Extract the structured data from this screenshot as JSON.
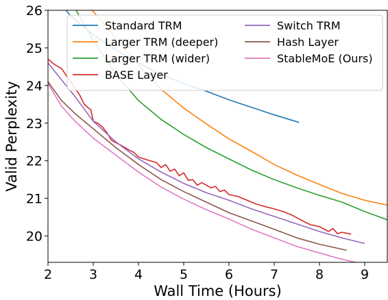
{
  "chart_data": {
    "type": "line",
    "xlabel": "Wall Time (Hours)",
    "ylabel": "Valid Perplexity",
    "xlim": [
      2,
      9.5
    ],
    "ylim": [
      19.3,
      26
    ],
    "xticks": [
      2,
      3,
      4,
      5,
      6,
      7,
      8,
      9
    ],
    "yticks": [
      20,
      21,
      22,
      23,
      24,
      25,
      26
    ],
    "legend_placement": "top-right",
    "grid": false,
    "series": [
      {
        "name": "Standard TRM",
        "color": "#1f77b4",
        "points": [
          [
            2.0,
            26.6
          ],
          [
            2.5,
            25.85
          ],
          [
            3.0,
            25.35
          ],
          [
            3.5,
            24.95
          ],
          [
            4.0,
            24.6
          ],
          [
            4.5,
            24.3
          ],
          [
            5.0,
            24.05
          ],
          [
            5.5,
            23.85
          ],
          [
            6.0,
            23.62
          ],
          [
            6.5,
            23.42
          ],
          [
            7.0,
            23.22
          ],
          [
            7.55,
            23.02
          ]
        ]
      },
      {
        "name": "Larger TRM (deeper)",
        "color": "#ff7f0e",
        "points": [
          [
            2.9,
            26.1
          ],
          [
            3.2,
            25.7
          ],
          [
            3.6,
            25.1
          ],
          [
            4.0,
            24.55
          ],
          [
            4.5,
            23.9
          ],
          [
            5.0,
            23.4
          ],
          [
            5.5,
            22.98
          ],
          [
            6.0,
            22.58
          ],
          [
            6.5,
            22.25
          ],
          [
            7.0,
            21.9
          ],
          [
            7.5,
            21.62
          ],
          [
            8.0,
            21.37
          ],
          [
            8.5,
            21.13
          ],
          [
            9.0,
            20.95
          ],
          [
            9.5,
            20.82
          ]
        ]
      },
      {
        "name": "Larger TRM (wider)",
        "color": "#2ca02c",
        "points": [
          [
            2.6,
            26.05
          ],
          [
            3.0,
            25.2
          ],
          [
            3.5,
            24.3
          ],
          [
            4.0,
            23.6
          ],
          [
            4.5,
            23.1
          ],
          [
            5.0,
            22.7
          ],
          [
            5.5,
            22.35
          ],
          [
            6.0,
            22.05
          ],
          [
            6.5,
            21.75
          ],
          [
            7.0,
            21.5
          ],
          [
            7.5,
            21.28
          ],
          [
            8.0,
            21.08
          ],
          [
            8.5,
            20.9
          ],
          [
            9.0,
            20.65
          ],
          [
            9.5,
            20.43
          ]
        ]
      },
      {
        "name": "BASE Layer",
        "color": "#d62728",
        "points": [
          [
            2.0,
            24.7
          ],
          [
            2.15,
            24.55
          ],
          [
            2.3,
            24.45
          ],
          [
            2.5,
            24.1
          ],
          [
            2.7,
            23.75
          ],
          [
            2.8,
            23.5
          ],
          [
            2.95,
            23.35
          ],
          [
            3.0,
            23.05
          ],
          [
            3.1,
            23.0
          ],
          [
            3.2,
            22.9
          ],
          [
            3.3,
            22.75
          ],
          [
            3.4,
            22.55
          ],
          [
            3.5,
            22.48
          ],
          [
            3.6,
            22.42
          ],
          [
            3.7,
            22.35
          ],
          [
            3.8,
            22.28
          ],
          [
            3.9,
            22.22
          ],
          [
            4.0,
            22.1
          ],
          [
            4.2,
            22.02
          ],
          [
            4.4,
            21.95
          ],
          [
            4.5,
            21.82
          ],
          [
            4.6,
            21.9
          ],
          [
            4.7,
            21.72
          ],
          [
            4.8,
            21.78
          ],
          [
            4.9,
            21.6
          ],
          [
            5.0,
            21.68
          ],
          [
            5.1,
            21.48
          ],
          [
            5.2,
            21.5
          ],
          [
            5.3,
            21.35
          ],
          [
            5.4,
            21.42
          ],
          [
            5.5,
            21.35
          ],
          [
            5.6,
            21.28
          ],
          [
            5.7,
            21.32
          ],
          [
            5.8,
            21.18
          ],
          [
            5.9,
            21.22
          ],
          [
            6.0,
            21.1
          ],
          [
            6.2,
            21.05
          ],
          [
            6.4,
            20.95
          ],
          [
            6.6,
            20.85
          ],
          [
            6.8,
            20.78
          ],
          [
            7.0,
            20.72
          ],
          [
            7.2,
            20.65
          ],
          [
            7.4,
            20.55
          ],
          [
            7.6,
            20.42
          ],
          [
            7.8,
            20.3
          ],
          [
            8.0,
            20.25
          ],
          [
            8.2,
            20.12
          ],
          [
            8.3,
            20.2
          ],
          [
            8.4,
            20.06
          ],
          [
            8.5,
            20.1
          ],
          [
            8.7,
            20.05
          ]
        ]
      },
      {
        "name": "Switch TRM",
        "color": "#9467bd",
        "points": [
          [
            2.0,
            24.6
          ],
          [
            2.3,
            24.15
          ],
          [
            2.6,
            23.7
          ],
          [
            3.0,
            23.05
          ],
          [
            3.5,
            22.5
          ],
          [
            4.0,
            22.05
          ],
          [
            4.5,
            21.7
          ],
          [
            5.0,
            21.4
          ],
          [
            5.5,
            21.15
          ],
          [
            6.0,
            20.95
          ],
          [
            6.5,
            20.72
          ],
          [
            7.0,
            20.52
          ],
          [
            7.5,
            20.32
          ],
          [
            8.0,
            20.12
          ],
          [
            8.5,
            19.95
          ],
          [
            9.0,
            19.8
          ]
        ]
      },
      {
        "name": "Hash Layer",
        "color": "#8c564b",
        "points": [
          [
            2.0,
            24.1
          ],
          [
            2.3,
            23.6
          ],
          [
            2.6,
            23.25
          ],
          [
            3.0,
            22.85
          ],
          [
            3.5,
            22.35
          ],
          [
            4.0,
            21.9
          ],
          [
            4.5,
            21.5
          ],
          [
            5.0,
            21.18
          ],
          [
            5.5,
            20.9
          ],
          [
            6.0,
            20.62
          ],
          [
            6.5,
            20.4
          ],
          [
            7.0,
            20.18
          ],
          [
            7.5,
            19.95
          ],
          [
            8.0,
            19.78
          ],
          [
            8.6,
            19.62
          ]
        ]
      },
      {
        "name": "StableMoE (Ours)",
        "color": "#e377c2",
        "points": [
          [
            2.0,
            24.05
          ],
          [
            2.3,
            23.45
          ],
          [
            2.6,
            23.05
          ],
          [
            3.0,
            22.6
          ],
          [
            3.5,
            22.15
          ],
          [
            4.0,
            21.7
          ],
          [
            4.5,
            21.3
          ],
          [
            5.0,
            20.98
          ],
          [
            5.5,
            20.7
          ],
          [
            6.0,
            20.45
          ],
          [
            6.5,
            20.18
          ],
          [
            7.0,
            19.95
          ],
          [
            7.5,
            19.72
          ],
          [
            8.0,
            19.55
          ],
          [
            8.5,
            19.38
          ],
          [
            9.0,
            19.25
          ]
        ]
      }
    ]
  }
}
